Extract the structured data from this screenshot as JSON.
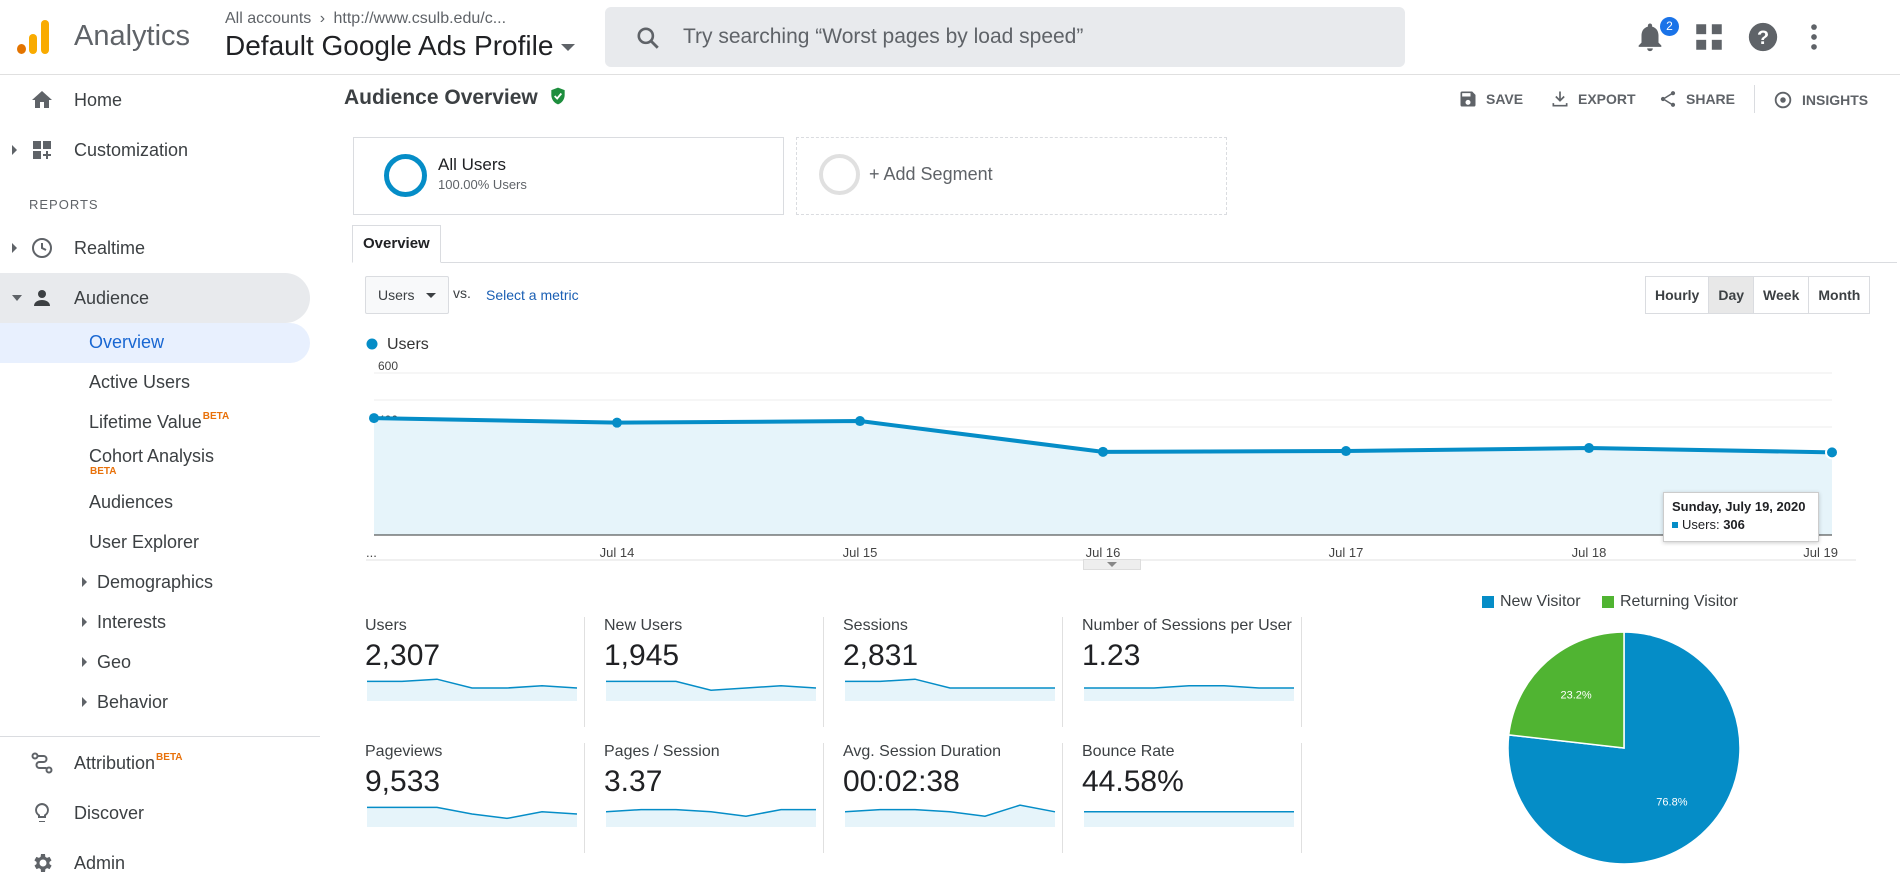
{
  "app": {
    "name": "Analytics"
  },
  "header": {
    "breadcrumb_accounts": "All accounts",
    "breadcrumb_property": "http://www.csulb.edu/c...",
    "profile": "Default Google Ads Profile",
    "search_placeholder": "Try searching “Worst pages by load speed”",
    "notifications_count": "2"
  },
  "sidebar": {
    "home": "Home",
    "customization": "Customization",
    "reports_heading": "REPORTS",
    "realtime": "Realtime",
    "audience": "Audience",
    "audience_items": {
      "overview": "Overview",
      "active_users": "Active Users",
      "lifetime_value": "Lifetime Value",
      "cohort_analysis": "Cohort Analysis",
      "audiences": "Audiences",
      "user_explorer": "User Explorer",
      "demographics": "Demographics",
      "interests": "Interests",
      "geo": "Geo",
      "behavior": "Behavior"
    },
    "beta": "BETA",
    "attribution": "Attribution",
    "discover": "Discover",
    "admin": "Admin"
  },
  "page": {
    "title": "Audience Overview",
    "actions": {
      "save": "SAVE",
      "export": "EXPORT",
      "share": "SHARE",
      "insights": "INSIGHTS"
    },
    "segment": {
      "name": "All Users",
      "detail": "100.00% Users",
      "add": "+ Add Segment"
    },
    "tab": "Overview",
    "metric": "Users",
    "vs": "vs.",
    "select_metric": "Select a metric",
    "granularity": [
      "Hourly",
      "Day",
      "Week",
      "Month"
    ],
    "granularity_selected": "Day"
  },
  "chart_data": [
    {
      "type": "area",
      "series": [
        {
          "name": "Users",
          "values": [
            433,
            416,
            422,
            308,
            311,
            322,
            306
          ]
        }
      ],
      "x": [
        "...",
        "Jul 14",
        "Jul 15",
        "Jul 16",
        "Jul 17",
        "Jul 18",
        "Jul 19"
      ],
      "y_ticks": [
        "600",
        "400",
        "200"
      ],
      "ylim": [
        0,
        600
      ],
      "color": "#058dc7",
      "tooltip": {
        "title": "Sunday, July 19, 2020",
        "label": "Users:",
        "value": "306"
      }
    },
    {
      "type": "pie",
      "slices": [
        {
          "name": "New Visitor",
          "value": 76.8,
          "label": "76.8%",
          "color": "#058dc7"
        },
        {
          "name": "Returning Visitor",
          "value": 23.2,
          "label": "23.2%",
          "color": "#50b432"
        }
      ]
    }
  ],
  "kpis": [
    {
      "label": "Users",
      "value": "2,307",
      "spark": [
        8,
        8,
        9,
        5,
        5,
        6,
        5
      ]
    },
    {
      "label": "New Users",
      "value": "1,945",
      "spark": [
        8,
        8,
        8,
        4,
        5,
        6,
        5
      ]
    },
    {
      "label": "Sessions",
      "value": "2,831",
      "spark": [
        8,
        8,
        9,
        5,
        5,
        5,
        5
      ]
    },
    {
      "label": "Number of Sessions per User",
      "value": "1.23",
      "spark": [
        5,
        5,
        5,
        6,
        6,
        5,
        5
      ]
    },
    {
      "label": "Pageviews",
      "value": "9,533",
      "spark": [
        8,
        8,
        8,
        5,
        3,
        6,
        5
      ]
    },
    {
      "label": "Pages / Session",
      "value": "3.37",
      "spark": [
        6,
        7,
        7,
        6,
        4,
        7,
        7
      ]
    },
    {
      "label": "Avg. Session Duration",
      "value": "00:02:38",
      "spark": [
        6,
        7,
        7,
        6,
        4,
        9,
        6
      ]
    },
    {
      "label": "Bounce Rate",
      "value": "44.58%",
      "spark": [
        6,
        6,
        6,
        6,
        6,
        6,
        6
      ]
    }
  ]
}
